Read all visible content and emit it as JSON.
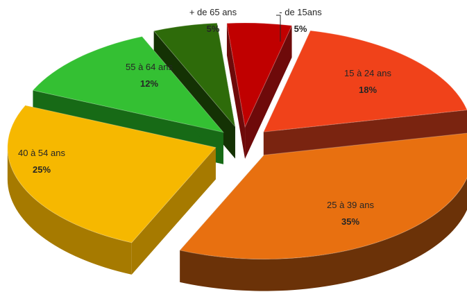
{
  "chart_data": {
    "type": "pie",
    "style": "3d-exploded",
    "slices": [
      {
        "label": "- de 15ans",
        "value": 5,
        "pct_label": "5%",
        "color": "#c00000",
        "dark": "#6e0a0a"
      },
      {
        "label": "15 à 24 ans",
        "value": 18,
        "pct_label": "18%",
        "color": "#f0421a",
        "dark": "#7a2410"
      },
      {
        "label": "25 à 39 ans",
        "value": 35,
        "pct_label": "35%",
        "color": "#e87010",
        "dark": "#6b3208"
      },
      {
        "label": "40 à 54 ans",
        "value": 25,
        "pct_label": "25%",
        "color": "#f6b800",
        "dark": "#a67a00"
      },
      {
        "label": "55 à 64 ans",
        "value": 12,
        "pct_label": "12%",
        "color": "#34c033",
        "dark": "#176a16"
      },
      {
        "label": "+ de 65 ans",
        "value": 5,
        "pct_label": "5%",
        "color": "#2e6b0a",
        "dark": "#143204"
      }
    ]
  }
}
